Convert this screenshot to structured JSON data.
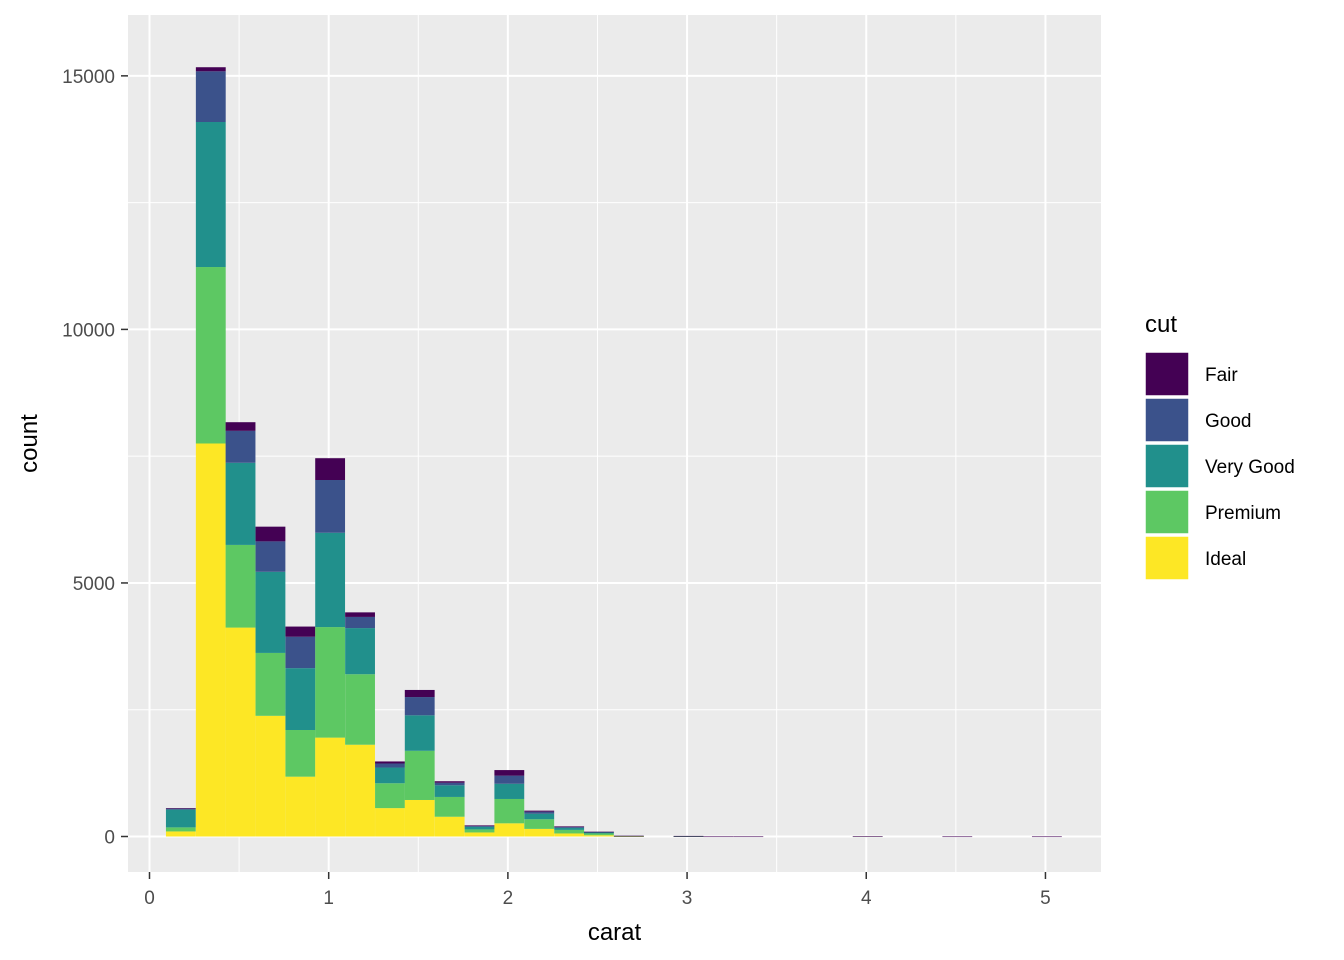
{
  "chart_data": {
    "type": "bar",
    "subtype": "stacked-histogram",
    "xlabel": "carat",
    "ylabel": "count",
    "xlim": [
      -0.12,
      5.31
    ],
    "ylim": [
      -700,
      16200
    ],
    "x_ticks": [
      0,
      1,
      2,
      3,
      4,
      5
    ],
    "y_ticks": [
      0,
      5000,
      10000,
      15000
    ],
    "grid": true,
    "panel_background": "#ebebeb",
    "legend": {
      "title": "cut",
      "position": "right",
      "entries": [
        {
          "label": "Fair",
          "color": "#440154"
        },
        {
          "label": "Good",
          "color": "#3b528b"
        },
        {
          "label": "Very Good",
          "color": "#21908c"
        },
        {
          "label": "Premium",
          "color": "#5dc863"
        },
        {
          "label": "Ideal",
          "color": "#fde725"
        }
      ]
    },
    "bin_width": 0.1665,
    "stack_order": [
      "Ideal",
      "Premium",
      "Very Good",
      "Good",
      "Fair"
    ],
    "bins": [
      {
        "x": 0.175,
        "Ideal": 100,
        "Premium": 80,
        "Very Good": 350,
        "Good": 20,
        "Fair": 10
      },
      {
        "x": 0.342,
        "Ideal": 7750,
        "Premium": 3480,
        "Very Good": 2860,
        "Good": 1000,
        "Fair": 80
      },
      {
        "x": 0.508,
        "Ideal": 4120,
        "Premium": 1630,
        "Very Good": 1620,
        "Good": 630,
        "Fair": 170
      },
      {
        "x": 0.675,
        "Ideal": 2380,
        "Premium": 1240,
        "Very Good": 1600,
        "Good": 600,
        "Fair": 290
      },
      {
        "x": 0.842,
        "Ideal": 1180,
        "Premium": 920,
        "Very Good": 1220,
        "Good": 620,
        "Fair": 200
      },
      {
        "x": 1.008,
        "Ideal": 1950,
        "Premium": 2180,
        "Very Good": 1860,
        "Good": 1040,
        "Fair": 430
      },
      {
        "x": 1.175,
        "Ideal": 1810,
        "Premium": 1390,
        "Very Good": 910,
        "Good": 220,
        "Fair": 90
      },
      {
        "x": 1.342,
        "Ideal": 560,
        "Premium": 490,
        "Very Good": 310,
        "Good": 80,
        "Fair": 40
      },
      {
        "x": 1.508,
        "Ideal": 720,
        "Premium": 970,
        "Very Good": 700,
        "Good": 360,
        "Fair": 140
      },
      {
        "x": 1.675,
        "Ideal": 390,
        "Premium": 390,
        "Very Good": 230,
        "Good": 50,
        "Fair": 30
      },
      {
        "x": 1.842,
        "Ideal": 80,
        "Premium": 60,
        "Very Good": 50,
        "Good": 20,
        "Fair": 10
      },
      {
        "x": 2.008,
        "Ideal": 260,
        "Premium": 480,
        "Very Good": 300,
        "Good": 160,
        "Fair": 110
      },
      {
        "x": 2.175,
        "Ideal": 150,
        "Premium": 190,
        "Very Good": 110,
        "Good": 40,
        "Fair": 20
      },
      {
        "x": 2.342,
        "Ideal": 60,
        "Premium": 70,
        "Very Good": 40,
        "Good": 20,
        "Fair": 10
      },
      {
        "x": 2.508,
        "Ideal": 25,
        "Premium": 35,
        "Very Good": 20,
        "Good": 10,
        "Fair": 5
      },
      {
        "x": 2.675,
        "Ideal": 3,
        "Premium": 5,
        "Very Good": 3,
        "Good": 2,
        "Fair": 2
      },
      {
        "x": 2.842,
        "Ideal": 0,
        "Premium": 0,
        "Very Good": 0,
        "Good": 0,
        "Fair": 0
      },
      {
        "x": 3.008,
        "Ideal": 2,
        "Premium": 3,
        "Very Good": 2,
        "Good": 2,
        "Fair": 3
      },
      {
        "x": 3.175,
        "Ideal": 0,
        "Premium": 0,
        "Very Good": 0,
        "Good": 0,
        "Fair": 1
      },
      {
        "x": 3.342,
        "Ideal": 0,
        "Premium": 0,
        "Very Good": 0,
        "Good": 0,
        "Fair": 1
      },
      {
        "x": 3.508,
        "Ideal": 0,
        "Premium": 0,
        "Very Good": 0,
        "Good": 0,
        "Fair": 0
      },
      {
        "x": 3.675,
        "Ideal": 0,
        "Premium": 0,
        "Very Good": 0,
        "Good": 0,
        "Fair": 0
      },
      {
        "x": 3.842,
        "Ideal": 0,
        "Premium": 0,
        "Very Good": 0,
        "Good": 0,
        "Fair": 0
      },
      {
        "x": 4.008,
        "Ideal": 0,
        "Premium": 1,
        "Very Good": 0,
        "Good": 0,
        "Fair": 1
      },
      {
        "x": 4.175,
        "Ideal": 0,
        "Premium": 0,
        "Very Good": 0,
        "Good": 0,
        "Fair": 0
      },
      {
        "x": 4.342,
        "Ideal": 0,
        "Premium": 0,
        "Very Good": 0,
        "Good": 0,
        "Fair": 0
      },
      {
        "x": 4.508,
        "Ideal": 0,
        "Premium": 0,
        "Very Good": 0,
        "Good": 0,
        "Fair": 1
      },
      {
        "x": 4.675,
        "Ideal": 0,
        "Premium": 0,
        "Very Good": 0,
        "Good": 0,
        "Fair": 0
      },
      {
        "x": 4.842,
        "Ideal": 0,
        "Premium": 0,
        "Very Good": 0,
        "Good": 0,
        "Fair": 0
      },
      {
        "x": 5.008,
        "Ideal": 0,
        "Premium": 0,
        "Very Good": 0,
        "Good": 0,
        "Fair": 1
      }
    ]
  }
}
